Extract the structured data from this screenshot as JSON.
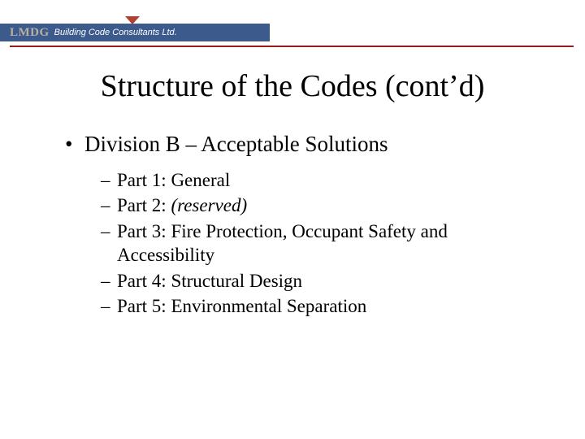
{
  "header": {
    "brand": "LMDG",
    "tagline": "Building Code Consultants Ltd."
  },
  "colors": {
    "header_bg": "#3c5a8c",
    "brand_text": "#b8b0a0",
    "tagline_text": "#ffffff",
    "notch": "#b04030",
    "rule": "#9a1b1b",
    "body_text": "#000000",
    "background": "#ffffff"
  },
  "title": "Structure of the Codes (cont’d)",
  "level1": {
    "bullet": "•",
    "text": "Division B – Acceptable Solutions"
  },
  "level2": [
    {
      "dash": "–",
      "text": "Part 1: General"
    },
    {
      "dash": "–",
      "prefix": "Part 2: ",
      "italic": "(reserved)"
    },
    {
      "dash": "–",
      "text": "Part 3: Fire Protection, Occupant Safety and Accessibility"
    },
    {
      "dash": "–",
      "text": "Part 4: Structural Design"
    },
    {
      "dash": "–",
      "text": "Part 5: Environmental Separation"
    }
  ],
  "typography": {
    "title_fontsize": 38,
    "l1_fontsize": 27,
    "l2_fontsize": 23,
    "font_family": "Times New Roman"
  }
}
